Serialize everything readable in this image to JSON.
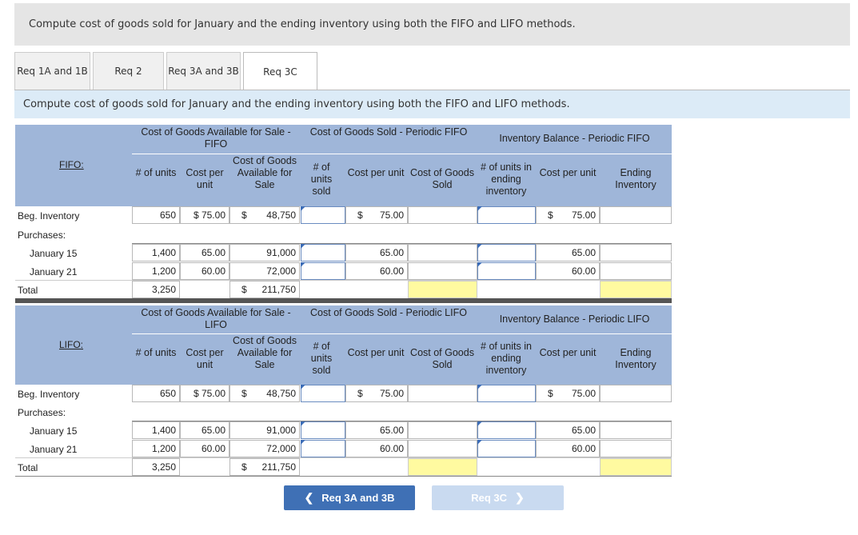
{
  "banner": {
    "text": "Compute cost of goods sold for January and the ending inventory using both the FIFO and LIFO methods."
  },
  "tabs": [
    {
      "label": "Req 1A and 1B"
    },
    {
      "label": "Req 2"
    },
    {
      "label": "Req 3A and 3B"
    },
    {
      "label": "Req 3C"
    }
  ],
  "instruction": "Compute cost of goods sold for January and the ending inventory using both the FIFO and LIFO methods.",
  "fifo": {
    "label": "FIFO:",
    "avail_title": "Cost of Goods Available for Sale - FIFO",
    "sold_title": "Cost of Goods Sold - Periodic FIFO",
    "bal_title": "Inventory Balance - Periodic FIFO"
  },
  "lifo": {
    "label": "LIFO:",
    "avail_title": "Cost of Goods Available for Sale - LIFO",
    "sold_title": "Cost of Goods Sold - Periodic LIFO",
    "bal_title": "Inventory Balance - Periodic LIFO"
  },
  "columns": {
    "units": "# of units",
    "cost_per_unit": "Cost per unit",
    "cost_avail": "Cost of Goods Available for Sale",
    "units_sold": "# of units sold",
    "cogs": "Cost of Goods Sold",
    "units_ending": "# of units in ending inventory",
    "ending_inv": "Ending Inventory"
  },
  "rows": {
    "beg": {
      "label": "Beg. Inventory",
      "units": "650",
      "cpu": "$ 75.00",
      "dollar": "$",
      "cost": "48,750",
      "sold_dollar": "$",
      "sold_cpu": "75.00",
      "bal_dollar": "$",
      "bal_cpu": "75.00"
    },
    "purch": {
      "label": "Purchases:"
    },
    "jan15": {
      "label": "January 15",
      "units": "1,400",
      "cpu": "65.00",
      "cost": "91,000",
      "sold_cpu": "65.00",
      "bal_cpu": "65.00"
    },
    "jan21": {
      "label": "January 21",
      "units": "1,200",
      "cpu": "60.00",
      "cost": "72,000",
      "sold_cpu": "60.00",
      "bal_cpu": "60.00"
    },
    "total": {
      "label": "Total",
      "units": "3,250",
      "dollar": "$",
      "cost": "211,750"
    }
  },
  "buttons": {
    "prev": "Req 3A and 3B",
    "next": "Req 3C"
  }
}
